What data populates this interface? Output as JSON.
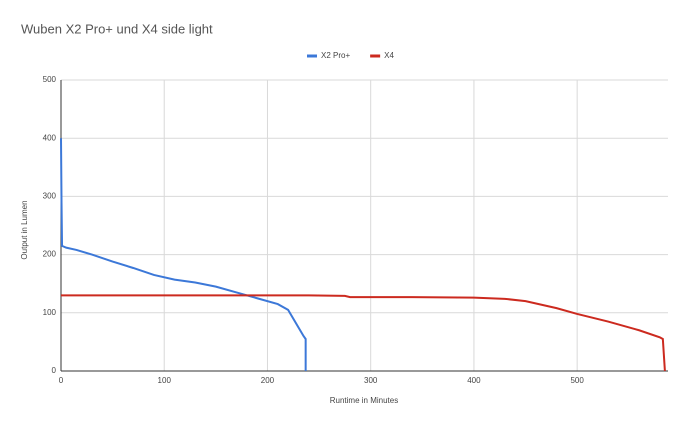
{
  "chart_data": {
    "type": "line",
    "title": "Wuben X2 Pro+ und X4 side light",
    "x_label": "Runtime in Minutes",
    "y_label": "Output in Lumen",
    "xlim": [
      0,
      588
    ],
    "xticks": [
      0,
      100,
      200,
      300,
      400,
      500
    ],
    "ylim": [
      0,
      500
    ],
    "yticks": [
      0,
      100,
      200,
      300,
      400,
      500
    ],
    "grid": true,
    "legend": "top",
    "series": [
      {
        "name": "X2 Pro+",
        "color": "#3c78d8",
        "x": [
          0,
          0.5,
          1,
          5,
          15,
          30,
          50,
          70,
          90,
          110,
          130,
          150,
          170,
          190,
          210,
          220,
          225,
          230,
          235,
          237,
          237
        ],
        "values": [
          400,
          290,
          215,
          212,
          208,
          200,
          188,
          177,
          165,
          157,
          152,
          145,
          135,
          125,
          115,
          105,
          90,
          75,
          60,
          55,
          0
        ]
      },
      {
        "name": "X4",
        "color": "#cc2a1f",
        "x": [
          0,
          100,
          200,
          240,
          275,
          280,
          340,
          400,
          430,
          450,
          480,
          500,
          530,
          560,
          580,
          583,
          585
        ],
        "values": [
          130,
          130,
          130,
          130,
          129,
          127,
          127,
          126,
          124,
          120,
          108,
          98,
          85,
          70,
          58,
          55,
          0
        ]
      }
    ]
  }
}
